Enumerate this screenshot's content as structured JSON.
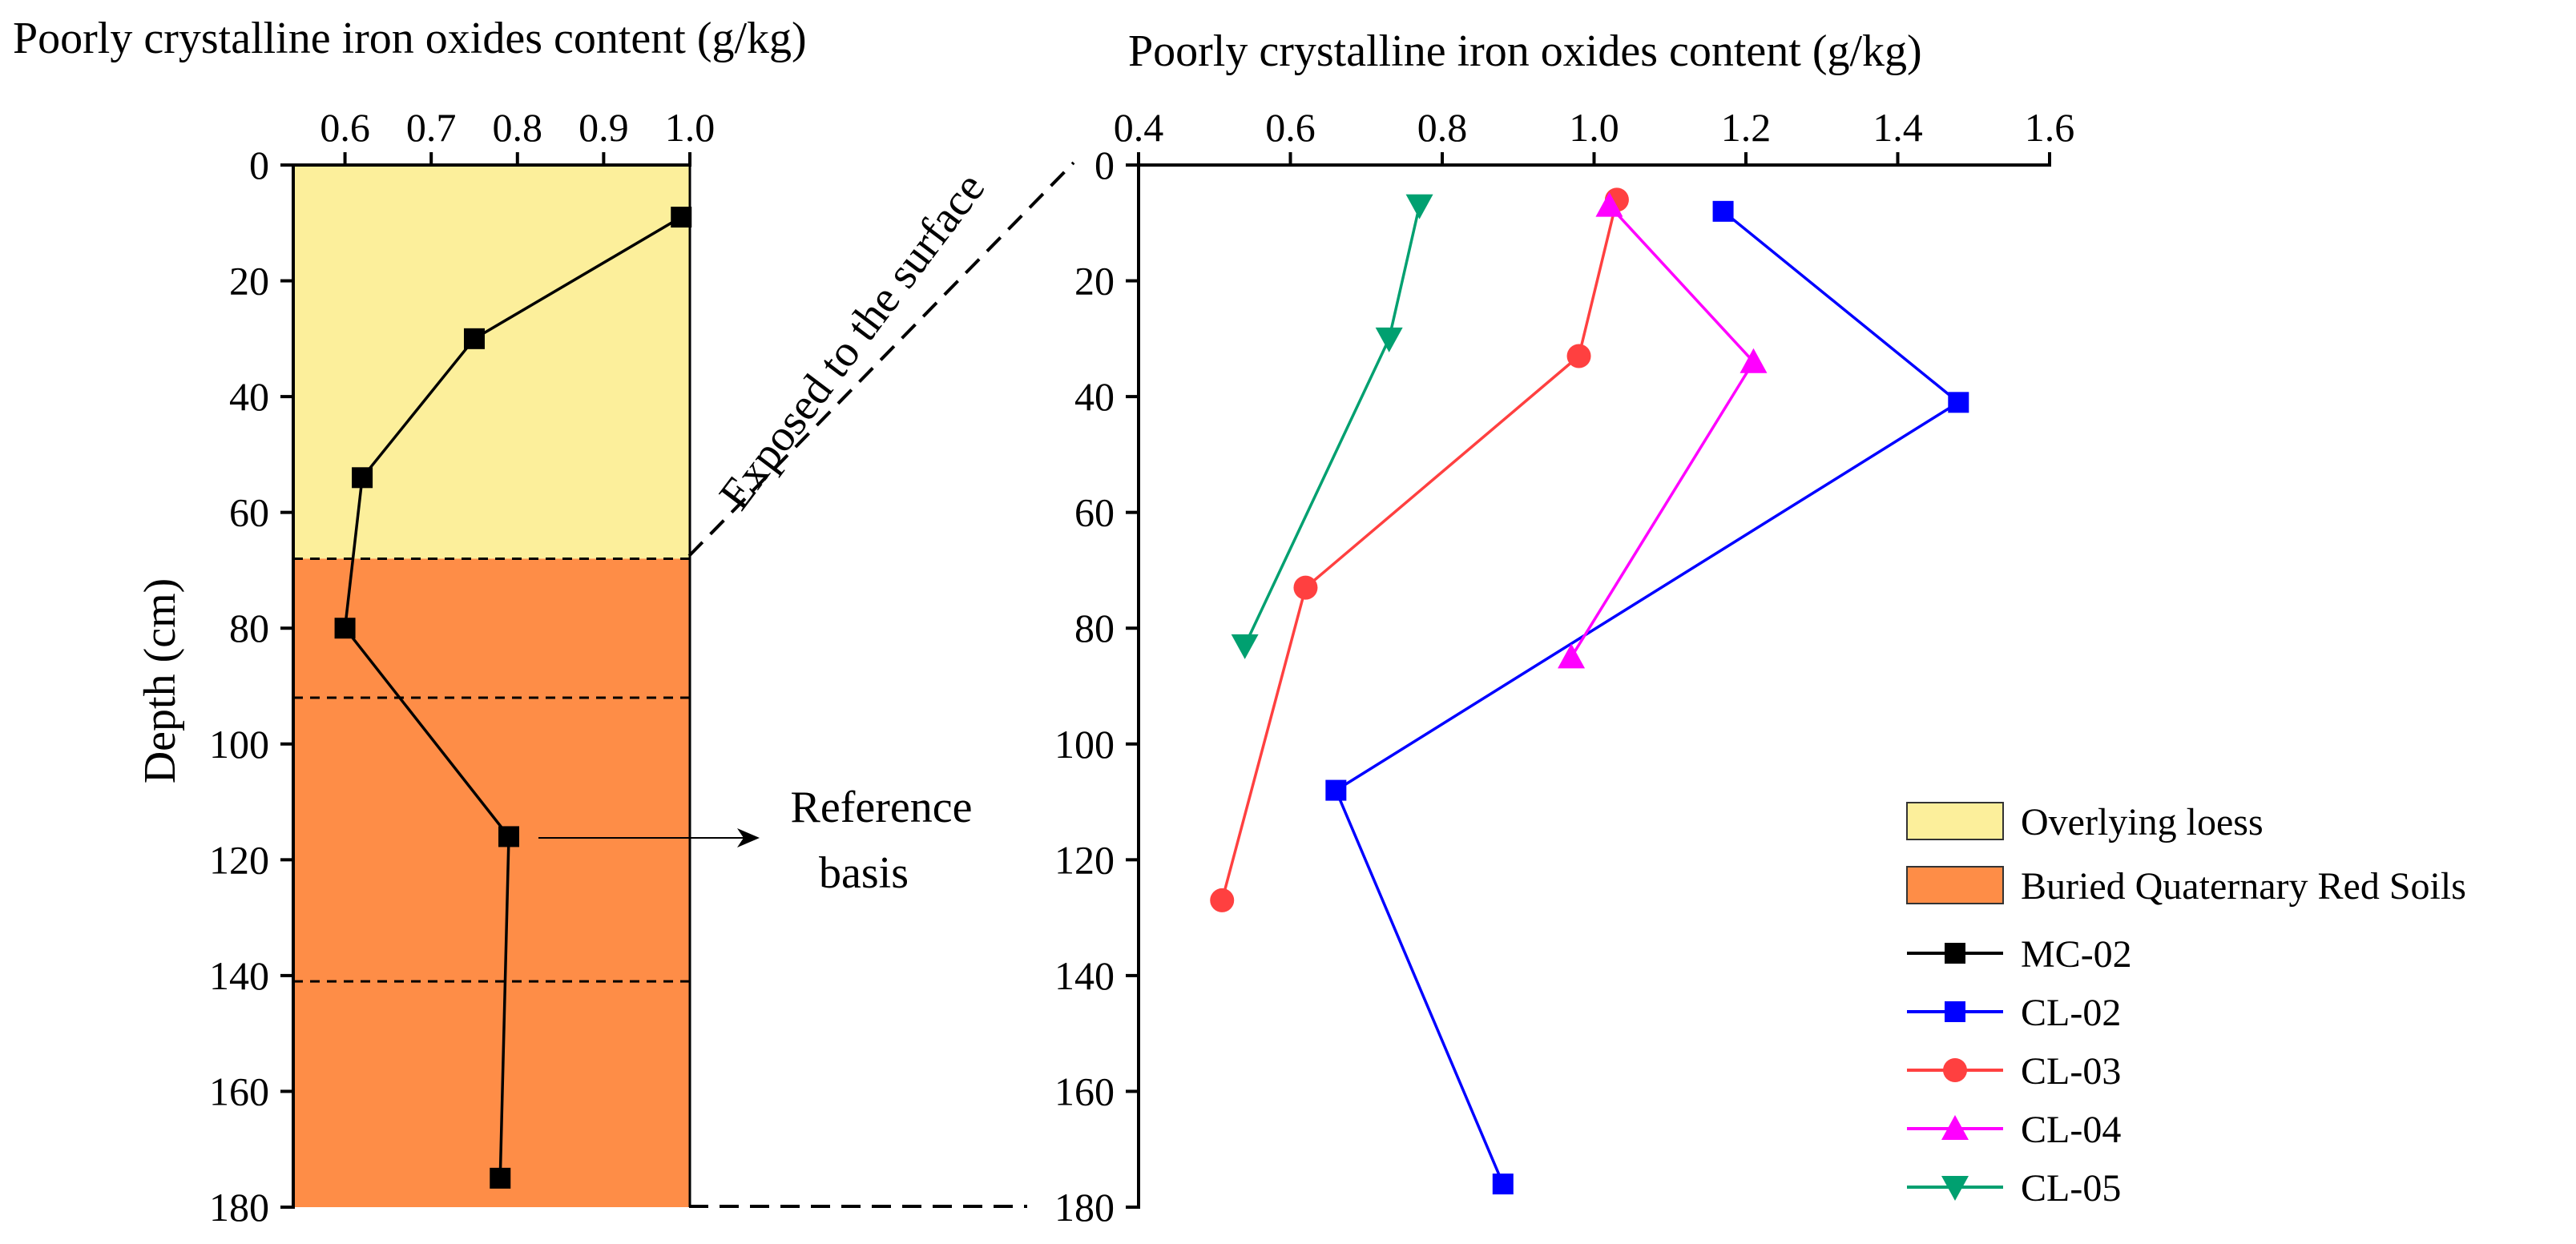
{
  "colors": {
    "loess": "#FCEF9B",
    "red_soils": "#FE8D47",
    "mc02": "#000000",
    "cl02": "#0000FF",
    "cl03": "#FF4040",
    "cl04": "#FF00FF",
    "cl05": "#00A070"
  },
  "annotations": {
    "exposed": "Exposed to the surface",
    "reference_line1": "Reference",
    "reference_line2": "basis"
  },
  "legend": {
    "loess": "Overlying loess",
    "red_soils": "Buried Quaternary Red Soils"
  },
  "chart_data": [
    {
      "id": "left-panel",
      "type": "line",
      "title": "Poorly crystalline iron oxides content (g/kg)",
      "xlabel": "Poorly crystalline iron oxides content (g/kg)",
      "ylabel": "Depth (cm)",
      "xlim": [
        0.54,
        1.0
      ],
      "xticks": [
        0.6,
        0.7,
        0.8,
        0.9,
        1.0
      ],
      "xtick_labels": [
        "0.6",
        "0.7",
        "0.8",
        "0.9",
        "1.0"
      ],
      "ylim": [
        0,
        180
      ],
      "yticks": [
        0,
        20,
        40,
        60,
        80,
        100,
        120,
        140,
        160,
        180
      ],
      "ytick_labels": [
        "0",
        "20",
        "40",
        "60",
        "80",
        "100",
        "120",
        "140",
        "160",
        "180"
      ],
      "y_inverted": true,
      "bands": [
        {
          "name": "Overlying loess",
          "from": 0,
          "to": 68
        },
        {
          "name": "Buried Quaternary Red Soils",
          "from": 68,
          "to": 180
        }
      ],
      "boundary_lines": [
        68,
        92,
        141
      ],
      "series": [
        {
          "name": "MC-02",
          "marker": "square",
          "points": [
            {
              "x": 0.99,
              "y": 9
            },
            {
              "x": 0.75,
              "y": 30
            },
            {
              "x": 0.62,
              "y": 54
            },
            {
              "x": 0.6,
              "y": 80
            },
            {
              "x": 0.79,
              "y": 116
            },
            {
              "x": 0.78,
              "y": 175
            }
          ]
        }
      ]
    },
    {
      "id": "right-panel",
      "type": "line",
      "title": "Poorly crystalline iron oxides content (g/kg)",
      "xlabel": "Poorly crystalline iron oxides content (g/kg)",
      "ylabel": "",
      "xlim": [
        0.4,
        1.6
      ],
      "xticks": [
        0.4,
        0.6,
        0.8,
        1.0,
        1.2,
        1.4,
        1.6
      ],
      "xtick_labels": [
        "0.4",
        "0.6",
        "0.8",
        "1.0",
        "1.2",
        "1.4",
        "1.6"
      ],
      "ylim": [
        0,
        180
      ],
      "yticks": [
        0,
        20,
        40,
        60,
        80,
        100,
        120,
        140,
        160,
        180
      ],
      "ytick_labels": [
        "0",
        "20",
        "40",
        "60",
        "80",
        "100",
        "120",
        "140",
        "160",
        "180"
      ],
      "y_inverted": true,
      "series": [
        {
          "name": "CL-02",
          "marker": "square",
          "points": [
            {
              "x": 1.17,
              "y": 8
            },
            {
              "x": 1.48,
              "y": 41
            },
            {
              "x": 0.66,
              "y": 108
            },
            {
              "x": 0.88,
              "y": 176
            }
          ]
        },
        {
          "name": "CL-03",
          "marker": "circle",
          "points": [
            {
              "x": 1.03,
              "y": 6
            },
            {
              "x": 0.98,
              "y": 33
            },
            {
              "x": 0.62,
              "y": 73
            },
            {
              "x": 0.51,
              "y": 127
            }
          ]
        },
        {
          "name": "CL-04",
          "marker": "triangle-up",
          "points": [
            {
              "x": 1.02,
              "y": 7
            },
            {
              "x": 1.21,
              "y": 34
            },
            {
              "x": 0.97,
              "y": 85
            }
          ]
        },
        {
          "name": "CL-05",
          "marker": "triangle-down",
          "points": [
            {
              "x": 0.77,
              "y": 7
            },
            {
              "x": 0.73,
              "y": 30
            },
            {
              "x": 0.54,
              "y": 83
            }
          ]
        }
      ]
    }
  ]
}
